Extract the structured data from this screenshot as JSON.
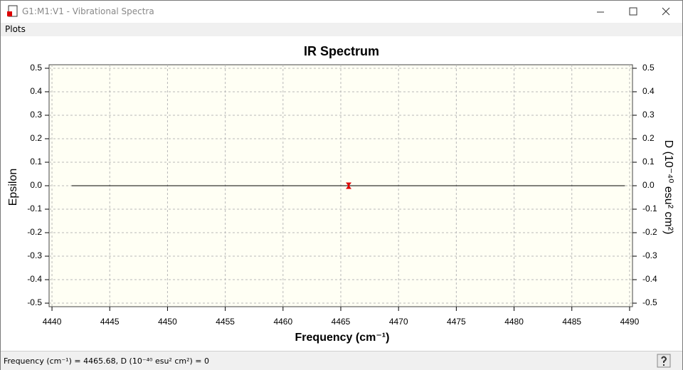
{
  "window": {
    "title": "G1:M1:V1 - Vibrational Spectra"
  },
  "menu": [
    "Plots"
  ],
  "chart_data": {
    "type": "line",
    "title": "IR Spectrum",
    "x_label": "Frequency (cm⁻¹)",
    "y_label": "Epsilon",
    "y2_label": "D (10⁻⁴⁰ esu² cm²)",
    "series": [
      {
        "color": "#000000",
        "x": [
          4441.7,
          4465.68,
          4489.6
        ],
        "values": [
          0,
          0,
          0
        ]
      }
    ],
    "peak": {
      "x": 4465.68,
      "value": 0,
      "color": "#e00000"
    },
    "xlim": [
      4439.75,
      4490.25
    ],
    "xticks": [
      4440,
      4445,
      4450,
      4455,
      4460,
      4465,
      4470,
      4475,
      4480,
      4485,
      4490
    ],
    "ylim": [
      -0.515,
      0.515
    ],
    "yticks": [
      -0.5,
      -0.4,
      -0.3,
      -0.2,
      -0.1,
      {
        "value": 0,
        "label": "0.0"
      },
      0.1,
      0.2,
      0.3,
      0.4,
      0.5
    ],
    "y2lim": [
      -0.515,
      0.515
    ],
    "y2ticks": [
      -0.5,
      -0.4,
      -0.3,
      -0.2,
      -0.1,
      {
        "value": 0,
        "label": "0.0"
      },
      0.1,
      0.2,
      0.3,
      0.4,
      0.5
    ],
    "grid": true,
    "background": "#fffff4"
  },
  "status_bar": {
    "text": "Frequency (cm⁻¹) = 4465.68, D (10⁻⁴⁰ esu² cm²) = 0"
  }
}
